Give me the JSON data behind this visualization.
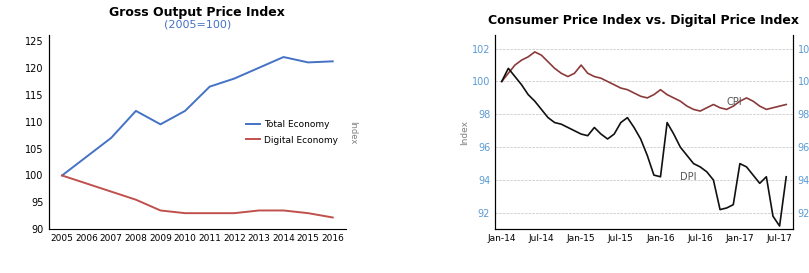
{
  "chart1": {
    "title": "Gross Output Price Index",
    "subtitle": "(2005=100)",
    "years": [
      2005,
      2006,
      2007,
      2008,
      2009,
      2010,
      2011,
      2012,
      2013,
      2014,
      2015,
      2016
    ],
    "total_economy": [
      100,
      103.5,
      107,
      112,
      109.5,
      112,
      116.5,
      118,
      120,
      122,
      121,
      121.2
    ],
    "digital_economy": [
      100,
      98.5,
      97,
      95.5,
      93.5,
      93,
      93,
      93,
      93.5,
      93.5,
      93,
      92.2
    ],
    "ylim": [
      90,
      126
    ],
    "yticks": [
      90,
      95,
      100,
      105,
      110,
      115,
      120,
      125
    ],
    "total_color": "#4472C4",
    "digital_color": "#C0504D",
    "legend_total": "Total Economy",
    "legend_digital": "Digital Economy"
  },
  "chart2": {
    "title": "Consumer Price Index vs. Digital Price Index",
    "ylabel": "Index",
    "ylim": [
      91.0,
      102.8
    ],
    "yticks": [
      92,
      94,
      96,
      98,
      100,
      102
    ],
    "cpi_color": "#8B3A3A",
    "dpi_color": "#111111",
    "cpi_label": "CPI",
    "dpi_label": "DPI",
    "x_labels": [
      "Jan-14",
      "Jul-14",
      "Jan-15",
      "Jul-15",
      "Jan-16",
      "Jul-16",
      "Jan-17",
      "Jul-17"
    ],
    "x_tick_indices": [
      0,
      6,
      12,
      18,
      24,
      30,
      36,
      42
    ],
    "cpi_data": [
      100.0,
      100.5,
      101.0,
      101.3,
      101.5,
      101.8,
      101.6,
      101.2,
      100.8,
      100.5,
      100.3,
      100.5,
      101.0,
      100.5,
      100.3,
      100.2,
      100.0,
      99.8,
      99.6,
      99.5,
      99.3,
      99.1,
      99.0,
      99.2,
      99.5,
      99.2,
      99.0,
      98.8,
      98.5,
      98.3,
      98.2,
      98.4,
      98.6,
      98.4,
      98.3,
      98.5,
      98.8,
      99.0,
      98.8,
      98.5,
      98.3,
      98.4,
      98.5,
      98.6
    ],
    "dpi_data": [
      100.0,
      100.8,
      100.3,
      99.8,
      99.2,
      98.8,
      98.3,
      97.8,
      97.5,
      97.4,
      97.2,
      97.0,
      96.8,
      96.7,
      97.2,
      96.8,
      96.5,
      96.8,
      97.5,
      97.8,
      97.2,
      96.5,
      95.5,
      94.3,
      94.2,
      97.5,
      96.8,
      96.0,
      95.5,
      95.0,
      94.8,
      94.5,
      94.0,
      92.2,
      92.3,
      92.5,
      95.0,
      94.8,
      94.3,
      93.8,
      94.2,
      91.8,
      91.2,
      94.2
    ]
  }
}
